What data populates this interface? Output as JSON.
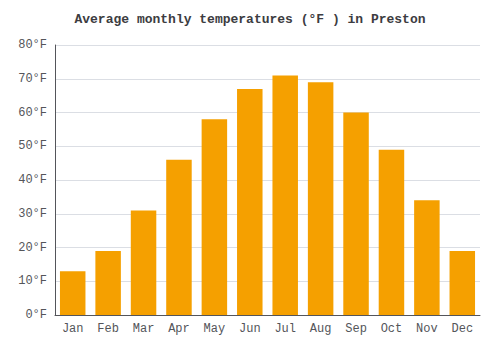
{
  "chart_data": {
    "type": "bar",
    "title": "Average monthly temperatures (°F ) in Preston",
    "categories": [
      "Jan",
      "Feb",
      "Mar",
      "Apr",
      "May",
      "Jun",
      "Jul",
      "Aug",
      "Sep",
      "Oct",
      "Nov",
      "Dec"
    ],
    "values": [
      13,
      19,
      31,
      46,
      58,
      67,
      71,
      69,
      60,
      49,
      34,
      19
    ],
    "color": "#F5A000",
    "ylim": [
      0,
      80
    ],
    "yticks": [
      {
        "value": 0,
        "label": "0°F"
      },
      {
        "value": 10,
        "label": "10°F"
      },
      {
        "value": 20,
        "label": "20°F"
      },
      {
        "value": 30,
        "label": "30°F"
      },
      {
        "value": 40,
        "label": "40°F"
      },
      {
        "value": 50,
        "label": "50°F"
      },
      {
        "value": 60,
        "label": "60°F"
      },
      {
        "value": 70,
        "label": "70°F"
      },
      {
        "value": 80,
        "label": "80°F"
      }
    ],
    "grid": true
  }
}
